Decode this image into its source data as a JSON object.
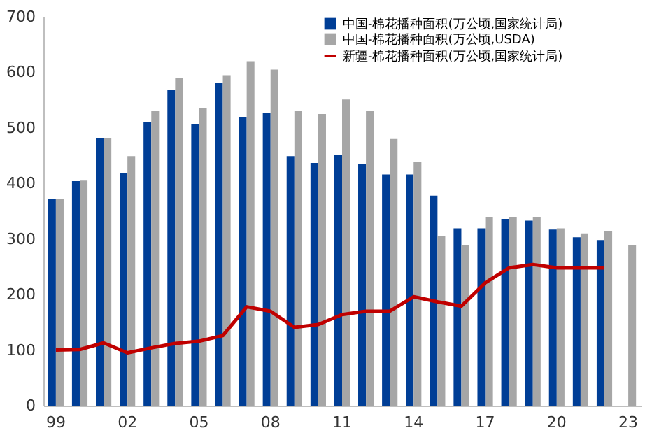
{
  "chart_data": {
    "type": "bar",
    "categories": [
      "99",
      null,
      null,
      "02",
      null,
      null,
      "05",
      null,
      null,
      "08",
      null,
      null,
      "11",
      null,
      null,
      "14",
      null,
      null,
      "17",
      null,
      null,
      "20",
      null,
      null,
      "23"
    ],
    "ylim": [
      0,
      700
    ],
    "yticks": [
      0,
      100,
      200,
      300,
      400,
      500,
      600,
      700
    ],
    "legend": "top right",
    "series": [
      {
        "name": "中国-棉花播种面积(万公顷,国家统计局)",
        "color": "#003e96",
        "values": [
          372,
          404,
          481,
          418,
          511,
          569,
          506,
          581,
          520,
          527,
          449,
          437,
          452,
          435,
          416,
          416,
          378,
          319,
          319,
          336,
          333,
          317,
          303,
          298,
          null
        ]
      },
      {
        "name": "中国-棉花播种面积(万公顷,USDA)",
        "color": "#a6a6a6",
        "values": [
          372,
          405,
          481,
          449,
          530,
          590,
          535,
          595,
          620,
          605,
          530,
          525,
          551,
          530,
          480,
          439,
          305,
          289,
          340,
          340,
          340,
          319,
          310,
          314,
          289
        ]
      },
      {
        "name": "新疆-棉花播种面积(万公顷,国家统计局)",
        "type": "line",
        "color": "#c00000",
        "values": [
          100,
          101,
          113,
          95,
          104,
          112,
          116,
          126,
          178,
          170,
          141,
          146,
          164,
          170,
          170,
          196,
          187,
          179,
          221,
          248,
          254,
          248,
          248,
          248,
          null
        ]
      }
    ]
  }
}
